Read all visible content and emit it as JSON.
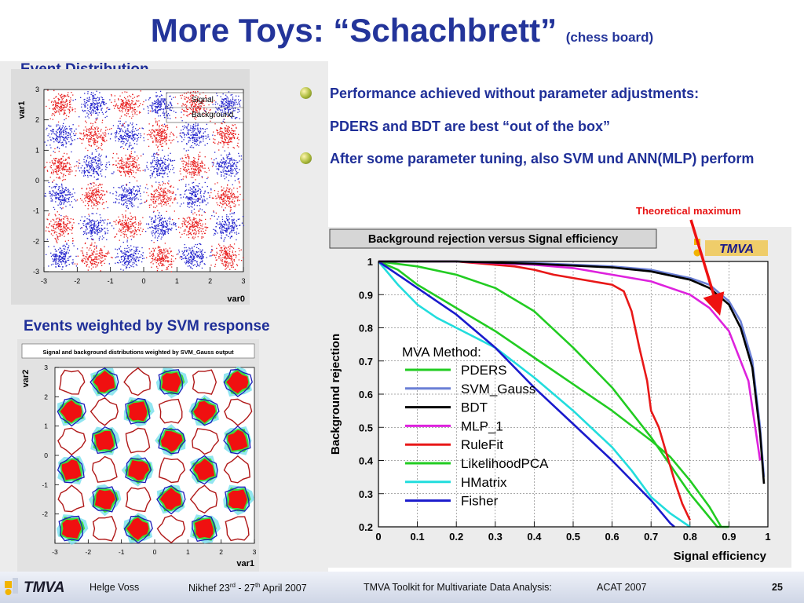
{
  "title": {
    "main": "More Toys:  “Schachbrett”",
    "sub": "(chess board)"
  },
  "left": {
    "event_distribution": {
      "heading": "Event Distribution",
      "ylabel": "var1",
      "xlabel": "var0",
      "legend": [
        "Signal",
        "Background"
      ],
      "x_ticks": [
        "-3",
        "-2",
        "-1",
        "0",
        "1",
        "2",
        "3"
      ],
      "y_ticks": [
        "3",
        "2",
        "1",
        "0",
        "-1",
        "-2",
        "-3"
      ],
      "colors": {
        "signal": "#2222cc",
        "background": "#e82020"
      }
    },
    "svm_weighted": {
      "heading": "Events weighted by SVM response",
      "plot_title": "Signal and background distributions weighted by SVM_Gauss output",
      "ylabel": "var2",
      "xlabel": "var1",
      "x_ticks": [
        "-3",
        "-2",
        "-1",
        "0",
        "1",
        "2",
        "3"
      ],
      "y_ticks": [
        "3",
        "2",
        "1",
        "0",
        "-1",
        "-2"
      ]
    }
  },
  "bullets": [
    "Performance achieved without parameter adjustments:",
    "PDERS and BDT are best “out of the box”",
    "After some parameter tuning, also SVM und ANN(MLP) perform"
  ],
  "annotation": "Theoretical maximum",
  "roc": {
    "title": "Background rejection versus Signal efficiency",
    "logo": "TMVA"
  },
  "chart_data": {
    "type": "line",
    "title": "Background rejection versus Signal efficiency",
    "xlabel": "Signal efficiency",
    "ylabel": "Background rejection",
    "xlim": [
      0,
      1
    ],
    "ylim": [
      0.2,
      1
    ],
    "x_ticks": [
      "0",
      "0.1",
      "0.2",
      "0.3",
      "0.4",
      "0.5",
      "0.6",
      "0.7",
      "0.8",
      "0.9",
      "1"
    ],
    "y_ticks": [
      "1",
      "0.9",
      "0.8",
      "0.7",
      "0.6",
      "0.5",
      "0.4",
      "0.3",
      "0.2"
    ],
    "grid": true,
    "legend_title": "MVA Method:",
    "legend_position": "center-left",
    "series": [
      {
        "name": "PDERS",
        "color": "#22cc22",
        "x": [
          0,
          0.1,
          0.2,
          0.3,
          0.4,
          0.5,
          0.6,
          0.7,
          0.8,
          0.87,
          0.9
        ],
        "y": [
          1,
          0.985,
          0.96,
          0.92,
          0.85,
          0.74,
          0.62,
          0.47,
          0.3,
          0.2,
          0.2
        ]
      },
      {
        "name": "SVM_Gauss",
        "color": "#6a7fd6",
        "x": [
          0,
          0.2,
          0.4,
          0.6,
          0.7,
          0.8,
          0.85,
          0.9,
          0.93,
          0.96,
          0.98,
          0.99
        ],
        "y": [
          1,
          1,
          0.995,
          0.985,
          0.975,
          0.95,
          0.93,
          0.88,
          0.82,
          0.7,
          0.5,
          0.35
        ]
      },
      {
        "name": "BDT",
        "color": "#000000",
        "x": [
          0,
          0.2,
          0.4,
          0.6,
          0.7,
          0.8,
          0.85,
          0.9,
          0.93,
          0.96,
          0.98,
          0.99
        ],
        "y": [
          1,
          1,
          0.993,
          0.982,
          0.97,
          0.945,
          0.92,
          0.87,
          0.8,
          0.68,
          0.48,
          0.33
        ]
      },
      {
        "name": "MLP_1",
        "color": "#dd22dd",
        "x": [
          0,
          0.2,
          0.4,
          0.5,
          0.6,
          0.7,
          0.8,
          0.85,
          0.9,
          0.95,
          0.98
        ],
        "y": [
          1,
          1,
          0.99,
          0.98,
          0.96,
          0.94,
          0.9,
          0.86,
          0.79,
          0.64,
          0.4
        ]
      },
      {
        "name": "RuleFit",
        "color": "#e81818",
        "x": [
          0,
          0.2,
          0.3,
          0.35,
          0.4,
          0.45,
          0.5,
          0.55,
          0.6,
          0.63,
          0.65,
          0.67,
          0.69,
          0.7,
          0.72,
          0.74,
          0.76,
          0.78,
          0.8
        ],
        "y": [
          1,
          1,
          0.99,
          0.985,
          0.975,
          0.96,
          0.95,
          0.94,
          0.93,
          0.91,
          0.85,
          0.74,
          0.64,
          0.55,
          0.5,
          0.42,
          0.34,
          0.27,
          0.22
        ]
      },
      {
        "name": "LikelihoodPCA",
        "color": "#22cc22",
        "x": [
          0,
          0.05,
          0.1,
          0.2,
          0.3,
          0.4,
          0.5,
          0.6,
          0.7,
          0.75,
          0.8,
          0.85,
          0.88
        ],
        "y": [
          1,
          0.975,
          0.93,
          0.86,
          0.79,
          0.71,
          0.63,
          0.55,
          0.46,
          0.41,
          0.34,
          0.26,
          0.2
        ]
      },
      {
        "name": "HMatrix",
        "color": "#22dddd",
        "x": [
          0,
          0.05,
          0.1,
          0.15,
          0.2,
          0.3,
          0.4,
          0.5,
          0.6,
          0.65,
          0.7,
          0.75,
          0.8
        ],
        "y": [
          1,
          0.93,
          0.87,
          0.83,
          0.8,
          0.74,
          0.65,
          0.55,
          0.44,
          0.37,
          0.29,
          0.24,
          0.2
        ]
      },
      {
        "name": "Fisher",
        "color": "#1a1acc",
        "x": [
          0,
          0.05,
          0.1,
          0.2,
          0.3,
          0.4,
          0.5,
          0.6,
          0.65,
          0.7,
          0.75,
          0.76
        ],
        "y": [
          1,
          0.96,
          0.92,
          0.84,
          0.74,
          0.62,
          0.51,
          0.4,
          0.34,
          0.28,
          0.21,
          0.2
        ]
      }
    ]
  },
  "footer": {
    "logo": "TMVA",
    "author": "Helge Voss",
    "event_prefix": "Nikhef  23",
    "rd": "rd",
    "event_mid": " - 27",
    "th": "th",
    "event_suffix": " April 2007",
    "talk": "TMVA Toolkit for Multivariate Data Analysis:",
    "conference": "ACAT 2007",
    "page": "25"
  }
}
